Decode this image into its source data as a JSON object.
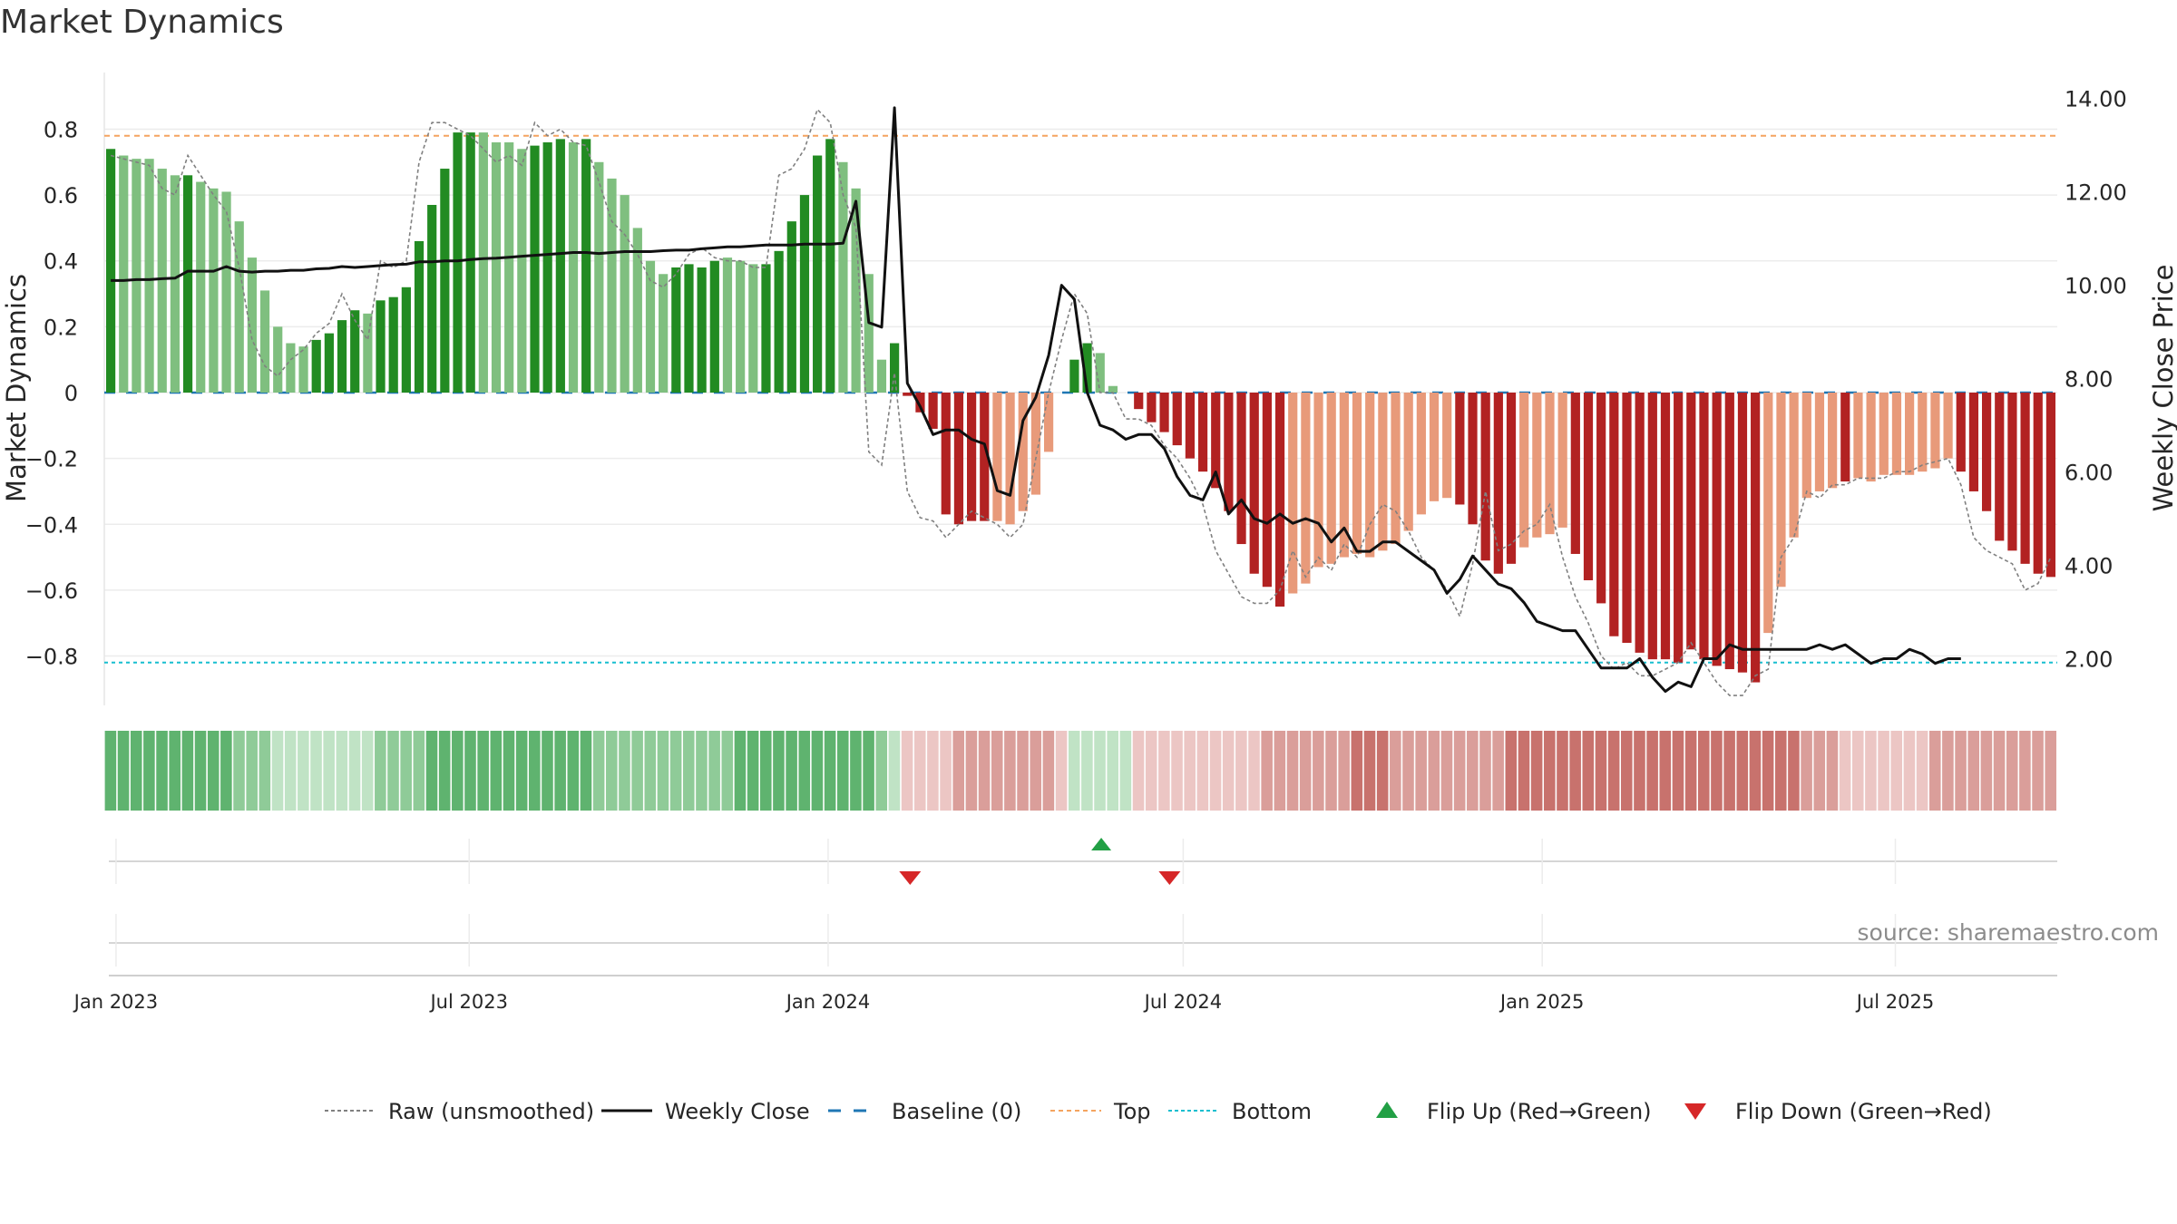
{
  "title": "Market Dynamics",
  "source": "source: sharemaestro.com",
  "colors": {
    "strong_green": "#228b22",
    "light_green": "#7fbf7f",
    "strong_red": "#b22222",
    "light_red": "#e89a7a",
    "close_line": "#111111",
    "raw_line": "#808080",
    "baseline": "#1f77b4",
    "top": "#f4a460",
    "bottom": "#17becf",
    "flip_up": "#22a045",
    "flip_down": "#d62728"
  },
  "chart_data": {
    "type": "bar",
    "ylabel_left": "Market Dynamics",
    "ylabel_right": "Weekly Close Price",
    "ylim_left": [
      -0.95,
      0.95
    ],
    "ylim_right": [
      1.0,
      14.4
    ],
    "left_ticks": [
      "0.8",
      "0.6",
      "0.4",
      "0.2",
      "0",
      "−0.2",
      "−0.4",
      "−0.6",
      "−0.8"
    ],
    "right_ticks": [
      "14.00",
      "12.00",
      "10.00",
      "8.00",
      "6.00",
      "4.00",
      "2.00"
    ],
    "x_ticks": [
      "Jan 2023",
      "Jul 2023",
      "Jan 2024",
      "Jul 2024",
      "Jan 2025",
      "Jul 2025"
    ],
    "top_level": 0.78,
    "bottom_level": -0.82,
    "baseline": 0,
    "grid": true,
    "legend_position": "bottom-center",
    "bars": [
      0.74,
      0.72,
      0.71,
      0.71,
      0.68,
      0.66,
      0.66,
      0.64,
      0.62,
      0.61,
      0.52,
      0.41,
      0.31,
      0.2,
      0.15,
      0.14,
      0.16,
      0.18,
      0.22,
      0.25,
      0.24,
      0.28,
      0.29,
      0.32,
      0.46,
      0.57,
      0.68,
      0.79,
      0.79,
      0.79,
      0.76,
      0.76,
      0.74,
      0.75,
      0.76,
      0.77,
      0.76,
      0.77,
      0.7,
      0.65,
      0.6,
      0.5,
      0.4,
      0.36,
      0.38,
      0.39,
      0.38,
      0.4,
      0.41,
      0.4,
      0.39,
      0.39,
      0.43,
      0.52,
      0.6,
      0.72,
      0.77,
      0.7,
      0.62,
      0.36,
      0.1,
      0.15,
      -0.01,
      -0.06,
      -0.11,
      -0.37,
      -0.4,
      -0.39,
      -0.39,
      -0.39,
      -0.4,
      -0.36,
      -0.31,
      -0.18,
      0,
      0.1,
      0.15,
      0.12,
      0.02,
      0,
      -0.05,
      -0.09,
      -0.12,
      -0.16,
      -0.2,
      -0.24,
      -0.29,
      -0.36,
      -0.46,
      -0.55,
      -0.59,
      -0.65,
      -0.61,
      -0.58,
      -0.53,
      -0.52,
      -0.5,
      -0.49,
      -0.5,
      -0.48,
      -0.46,
      -0.42,
      -0.37,
      -0.33,
      -0.32,
      -0.34,
      -0.4,
      -0.51,
      -0.55,
      -0.52,
      -0.47,
      -0.44,
      -0.43,
      -0.41,
      -0.49,
      -0.57,
      -0.64,
      -0.74,
      -0.76,
      -0.79,
      -0.81,
      -0.81,
      -0.82,
      -0.78,
      -0.81,
      -0.83,
      -0.84,
      -0.85,
      -0.88,
      -0.73,
      -0.59,
      -0.44,
      -0.32,
      -0.3,
      -0.29,
      -0.27,
      -0.26,
      -0.27,
      -0.25,
      -0.25,
      -0.25,
      -0.24,
      -0.23,
      -0.2,
      -0.24,
      -0.3,
      -0.36,
      -0.45,
      -0.48,
      -0.52,
      -0.55,
      -0.56
    ],
    "bar_strength": [
      1,
      0,
      0,
      0,
      0,
      0,
      1,
      0,
      0,
      0,
      0,
      0,
      0,
      0,
      0,
      0,
      1,
      1,
      1,
      1,
      0,
      1,
      1,
      1,
      1,
      1,
      1,
      1,
      1,
      0,
      0,
      0,
      0,
      1,
      1,
      1,
      0,
      1,
      0,
      0,
      0,
      0,
      0,
      0,
      1,
      1,
      1,
      1,
      0,
      0,
      0,
      1,
      1,
      1,
      1,
      1,
      1,
      0,
      0,
      0,
      0,
      1,
      1,
      1,
      1,
      1,
      1,
      1,
      1,
      0,
      0,
      0,
      0,
      0,
      0,
      1,
      1,
      0,
      0,
      1,
      1,
      1,
      1,
      1,
      1,
      1,
      1,
      1,
      1,
      1,
      1,
      1,
      0,
      0,
      0,
      0,
      0,
      0,
      0,
      0,
      0,
      0,
      0,
      0,
      0,
      1,
      1,
      1,
      1,
      1,
      0,
      0,
      0,
      0,
      1,
      1,
      1,
      1,
      1,
      1,
      1,
      1,
      1,
      1,
      1,
      1,
      1,
      1,
      1,
      0,
      0,
      0,
      0,
      0,
      0,
      1,
      0,
      0,
      0,
      0,
      0,
      0,
      0,
      0,
      1,
      1,
      1,
      1,
      1,
      1,
      1,
      1
    ],
    "raw": [
      0.72,
      0.71,
      0.7,
      0.69,
      0.62,
      0.6,
      0.72,
      0.66,
      0.6,
      0.55,
      0.38,
      0.16,
      0.08,
      0.05,
      0.1,
      0.13,
      0.18,
      0.21,
      0.3,
      0.22,
      0.16,
      0.4,
      0.38,
      0.4,
      0.7,
      0.82,
      0.82,
      0.8,
      0.78,
      0.74,
      0.7,
      0.72,
      0.69,
      0.82,
      0.78,
      0.8,
      0.76,
      0.75,
      0.64,
      0.52,
      0.48,
      0.42,
      0.34,
      0.32,
      0.36,
      0.42,
      0.44,
      0.41,
      0.4,
      0.4,
      0.38,
      0.38,
      0.66,
      0.68,
      0.74,
      0.86,
      0.82,
      0.6,
      0.5,
      -0.18,
      -0.22,
      0.06,
      -0.3,
      -0.38,
      -0.39,
      -0.44,
      -0.4,
      -0.36,
      -0.38,
      -0.4,
      -0.44,
      -0.4,
      -0.2,
      0.0,
      0.16,
      0.3,
      0.24,
      0.0,
      0.0,
      -0.08,
      -0.08,
      -0.1,
      -0.16,
      -0.2,
      -0.26,
      -0.34,
      -0.48,
      -0.55,
      -0.62,
      -0.64,
      -0.64,
      -0.6,
      -0.48,
      -0.56,
      -0.5,
      -0.54,
      -0.46,
      -0.5,
      -0.4,
      -0.34,
      -0.36,
      -0.42,
      -0.5,
      -0.54,
      -0.6,
      -0.68,
      -0.52,
      -0.3,
      -0.48,
      -0.46,
      -0.42,
      -0.4,
      -0.34,
      -0.5,
      -0.62,
      -0.7,
      -0.8,
      -0.84,
      -0.82,
      -0.86,
      -0.86,
      -0.84,
      -0.82,
      -0.76,
      -0.82,
      -0.88,
      -0.92,
      -0.92,
      -0.86,
      -0.84,
      -0.5,
      -0.44,
      -0.3,
      -0.32,
      -0.28,
      -0.28,
      -0.26,
      -0.26,
      -0.26,
      -0.24,
      -0.24,
      -0.22,
      -0.21,
      -0.2,
      -0.28,
      -0.44,
      -0.48,
      -0.5,
      -0.52,
      -0.6,
      -0.58,
      -0.5
    ],
    "close": [
      10.1,
      10.1,
      10.12,
      10.12,
      10.14,
      10.15,
      10.3,
      10.3,
      10.3,
      10.4,
      10.3,
      10.28,
      10.3,
      10.3,
      10.32,
      10.32,
      10.35,
      10.36,
      10.4,
      10.38,
      10.4,
      10.42,
      10.44,
      10.45,
      10.5,
      10.5,
      10.52,
      10.52,
      10.55,
      10.57,
      10.58,
      10.6,
      10.62,
      10.64,
      10.66,
      10.68,
      10.7,
      10.7,
      10.68,
      10.7,
      10.72,
      10.72,
      10.72,
      10.74,
      10.75,
      10.75,
      10.78,
      10.8,
      10.82,
      10.82,
      10.84,
      10.86,
      10.86,
      10.86,
      10.88,
      10.88,
      10.88,
      10.9,
      11.8,
      9.2,
      9.1,
      13.8,
      7.9,
      7.4,
      6.8,
      6.9,
      6.9,
      6.7,
      6.6,
      5.6,
      5.5,
      7.1,
      7.6,
      8.5,
      10.0,
      9.7,
      7.7,
      7.0,
      6.9,
      6.7,
      6.8,
      6.8,
      6.5,
      5.9,
      5.5,
      5.4,
      6.0,
      5.1,
      5.4,
      5.0,
      4.9,
      5.1,
      4.9,
      5.0,
      4.9,
      4.5,
      4.8,
      4.3,
      4.3,
      4.5,
      4.5,
      4.3,
      4.1,
      3.9,
      3.4,
      3.7,
      4.2,
      3.9,
      3.6,
      3.5,
      3.2,
      2.8,
      2.7,
      2.6,
      2.6,
      2.2,
      1.8,
      1.8,
      1.8,
      2.0,
      1.6,
      1.3,
      1.5,
      1.4,
      2.0,
      2.0,
      2.3,
      2.2,
      2.2,
      2.2,
      2.2,
      2.2,
      2.2,
      2.3,
      2.2,
      2.3,
      2.1,
      1.9,
      2.0,
      2.0,
      2.2,
      2.1,
      1.9,
      2.0,
      2.0
    ],
    "regime": [
      3,
      3,
      3,
      3,
      3,
      3,
      3,
      3,
      3,
      3,
      2,
      2,
      2,
      1,
      1,
      1,
      1,
      1,
      1,
      1,
      1,
      2,
      2,
      2,
      2,
      3,
      3,
      3,
      3,
      3,
      3,
      3,
      3,
      3,
      3,
      3,
      3,
      3,
      2,
      2,
      2,
      2,
      2,
      2,
      2,
      2,
      2,
      2,
      2,
      3,
      3,
      3,
      3,
      3,
      3,
      3,
      3,
      3,
      3,
      3,
      2,
      1,
      -1,
      -1,
      -1,
      -1,
      -2,
      -2,
      -2,
      -2,
      -2,
      -2,
      -2,
      -2,
      -1,
      1,
      1,
      1,
      1,
      1,
      -1,
      -1,
      -1,
      -1,
      -1,
      -1,
      -1,
      -1,
      -1,
      -1,
      -2,
      -2,
      -2,
      -2,
      -2,
      -2,
      -2,
      -3,
      -3,
      -3,
      -2,
      -2,
      -2,
      -2,
      -2,
      -2,
      -2,
      -2,
      -2,
      -3,
      -3,
      -3,
      -3,
      -3,
      -3,
      -3,
      -3,
      -3,
      -3,
      -3,
      -3,
      -3,
      -3,
      -3,
      -3,
      -3,
      -3,
      -3,
      -3,
      -3,
      -3,
      -3,
      -2,
      -2,
      -2,
      -1,
      -1,
      -1,
      -1,
      -1,
      -1,
      -1,
      -2,
      -2,
      -2,
      -2,
      -2,
      -2,
      -2,
      -2,
      -2,
      -2
    ],
    "flips": [
      {
        "date": "2024-02-12",
        "type": "down"
      },
      {
        "date": "2024-05-20",
        "type": "up"
      },
      {
        "date": "2024-06-24",
        "type": "down"
      }
    ]
  },
  "legend": [
    {
      "key": "raw",
      "label": "Raw (unsmoothed)",
      "style": "dotted-gray"
    },
    {
      "key": "close",
      "label": "Weekly Close",
      "style": "solid-black"
    },
    {
      "key": "baseline",
      "label": "Baseline (0)",
      "style": "dashed-blue"
    },
    {
      "key": "top",
      "label": "Top",
      "style": "dashed-orange"
    },
    {
      "key": "bottom",
      "label": "Bottom",
      "style": "dotted-cyan"
    },
    {
      "key": "flip_up",
      "label": "Flip Up (Red→Green)",
      "style": "triangle-up-green"
    },
    {
      "key": "flip_down",
      "label": "Flip Down (Green→Red)",
      "style": "triangle-down-red"
    }
  ]
}
